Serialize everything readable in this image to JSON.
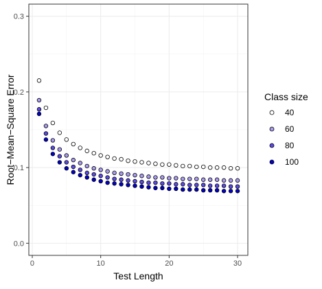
{
  "chart_data": {
    "type": "scatter",
    "title": "",
    "xlabel": "Test Length",
    "ylabel": "Root−Mean−Square Error",
    "xlim": [
      -0.5,
      31.5
    ],
    "ylim": [
      -0.016,
      0.316
    ],
    "x_ticks": [
      0,
      10,
      20,
      30
    ],
    "x_tick_labels": [
      "0",
      "10",
      "20",
      "30"
    ],
    "y_ticks": [
      0.0,
      0.1,
      0.2,
      0.3
    ],
    "y_tick_labels": [
      "0.0",
      "0.1",
      "0.2",
      "0.3"
    ],
    "grid": true,
    "legend_position": "right",
    "legend_title": "Class size",
    "x": [
      1,
      2,
      3,
      4,
      5,
      6,
      7,
      8,
      9,
      10,
      11,
      12,
      13,
      14,
      15,
      16,
      17,
      18,
      19,
      20,
      21,
      22,
      23,
      24,
      25,
      26,
      27,
      28,
      29,
      30
    ],
    "series": [
      {
        "name": "40",
        "color": "#ffffff",
        "values": [
          0.215,
          0.179,
          0.159,
          0.146,
          0.137,
          0.131,
          0.126,
          0.122,
          0.119,
          0.116,
          0.114,
          0.112,
          0.111,
          0.109,
          0.108,
          0.107,
          0.106,
          0.105,
          0.104,
          0.104,
          0.103,
          0.102,
          0.102,
          0.101,
          0.101,
          0.1,
          0.1,
          0.1,
          0.099,
          0.099
        ]
      },
      {
        "name": "60",
        "color": "#a99af0",
        "values": [
          0.189,
          0.155,
          0.136,
          0.124,
          0.116,
          0.11,
          0.106,
          0.102,
          0.099,
          0.097,
          0.095,
          0.093,
          0.092,
          0.091,
          0.09,
          0.089,
          0.088,
          0.087,
          0.087,
          0.086,
          0.086,
          0.085,
          0.085,
          0.085,
          0.084,
          0.084,
          0.084,
          0.083,
          0.083,
          0.083
        ]
      },
      {
        "name": "80",
        "color": "#5a4ae6",
        "values": [
          0.177,
          0.145,
          0.126,
          0.115,
          0.107,
          0.101,
          0.097,
          0.093,
          0.091,
          0.089,
          0.087,
          0.085,
          0.084,
          0.083,
          0.082,
          0.081,
          0.08,
          0.08,
          0.079,
          0.079,
          0.078,
          0.078,
          0.077,
          0.077,
          0.077,
          0.076,
          0.076,
          0.076,
          0.075,
          0.075
        ]
      },
      {
        "name": "100",
        "color": "#0000cd",
        "values": [
          0.171,
          0.137,
          0.118,
          0.107,
          0.099,
          0.094,
          0.09,
          0.087,
          0.084,
          0.082,
          0.08,
          0.079,
          0.078,
          0.077,
          0.076,
          0.075,
          0.074,
          0.073,
          0.073,
          0.072,
          0.072,
          0.071,
          0.071,
          0.071,
          0.07,
          0.07,
          0.07,
          0.069,
          0.069,
          0.069
        ]
      }
    ]
  }
}
